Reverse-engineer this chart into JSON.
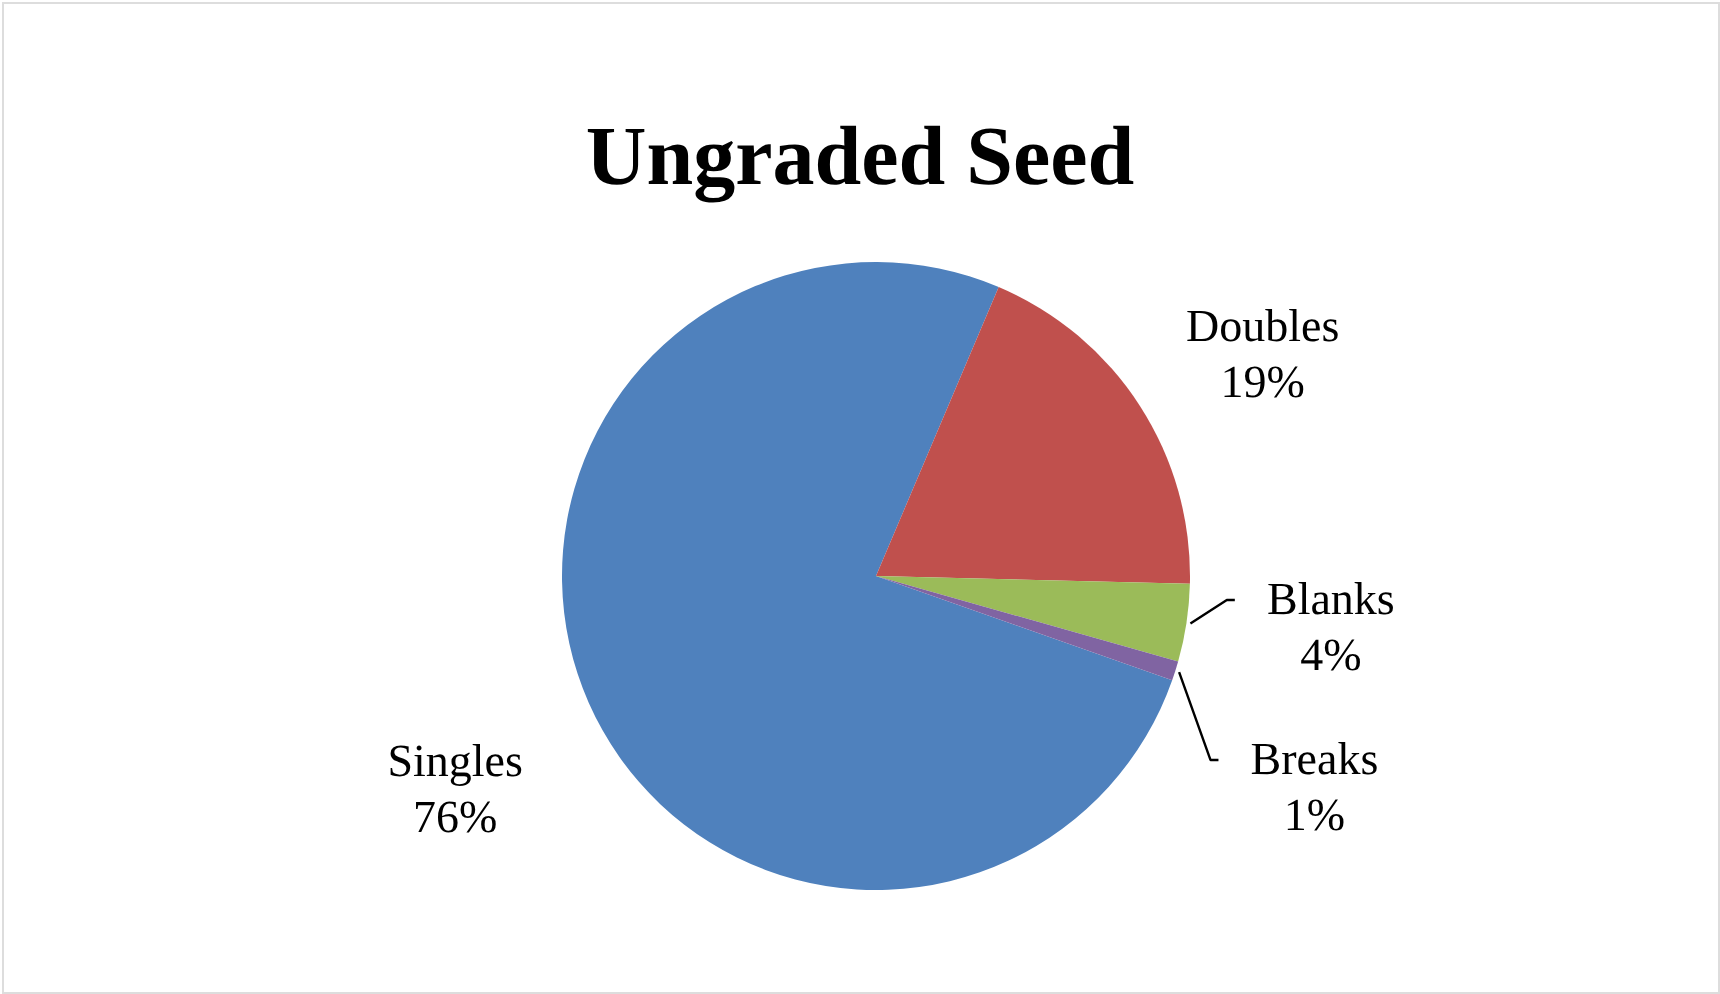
{
  "chart_data": {
    "type": "pie",
    "title": "Ungraded Seed",
    "categories": [
      "Singles",
      "Doubles",
      "Blanks",
      "Breaks"
    ],
    "values": [
      76,
      19,
      4,
      1
    ],
    "value_labels": [
      "76%",
      "19%",
      "4%",
      "1%"
    ],
    "colors": [
      "#4f81bd",
      "#c0504d",
      "#9bbb59",
      "#8064a2"
    ]
  }
}
